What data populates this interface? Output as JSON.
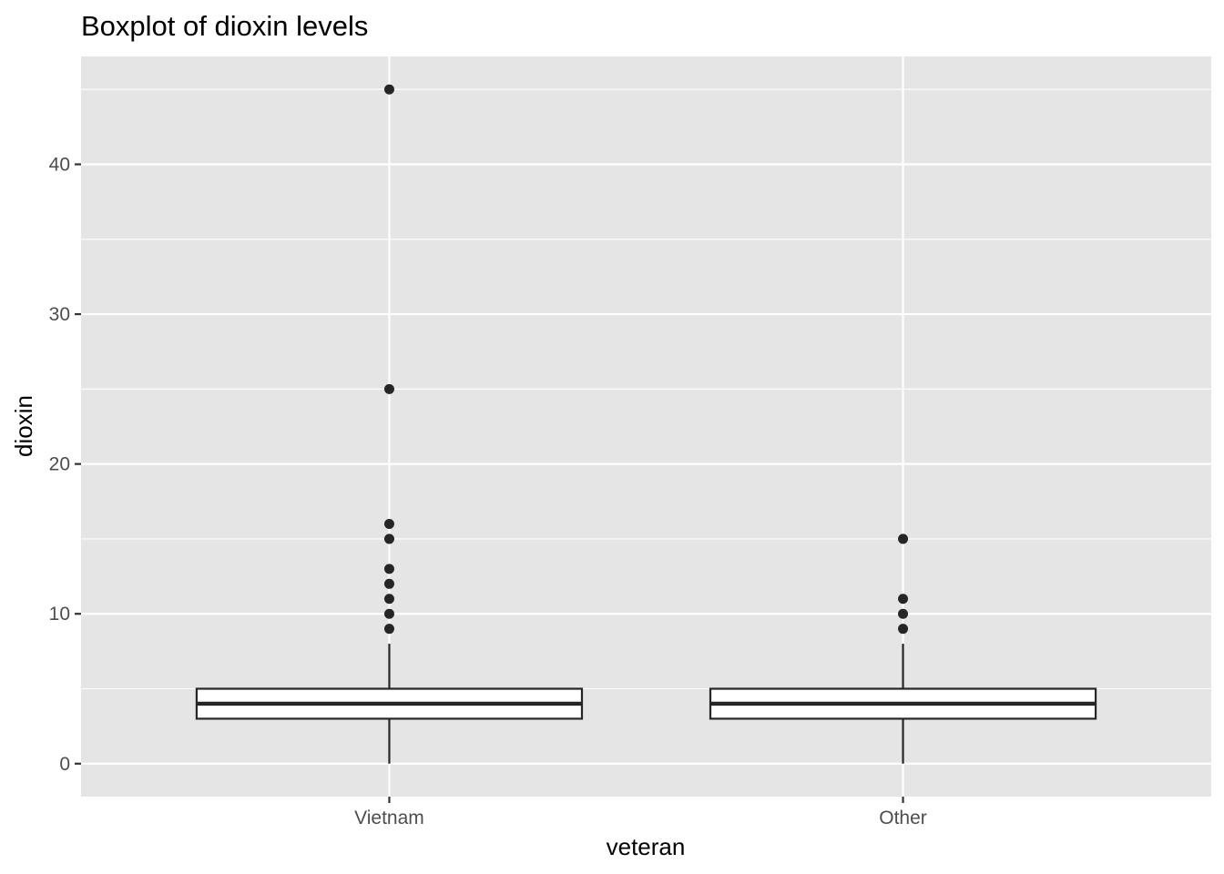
{
  "chart_data": {
    "type": "boxplot",
    "title": "Boxplot of dioxin levels",
    "xlabel": "veteran",
    "ylabel": "dioxin",
    "categories": [
      "Vietnam",
      "Other"
    ],
    "ylim": [
      -2.2,
      47.2
    ],
    "yticks": [
      0,
      10,
      20,
      30,
      40
    ],
    "grid": true,
    "background": "#e5e5e5",
    "gridline_color": "#ffffff",
    "box_fill": "#ffffff",
    "line_color": "#262626",
    "boxes": [
      {
        "category": "Vietnam",
        "whisker_low": 0,
        "q1": 3,
        "median": 4,
        "q3": 5,
        "whisker_high": 8,
        "outliers": [
          9,
          10,
          11,
          12,
          13,
          15,
          16,
          25,
          45
        ]
      },
      {
        "category": "Other",
        "whisker_low": 0,
        "q1": 3,
        "median": 4,
        "q3": 5,
        "whisker_high": 8,
        "outliers": [
          9,
          10,
          11,
          15
        ]
      }
    ]
  }
}
